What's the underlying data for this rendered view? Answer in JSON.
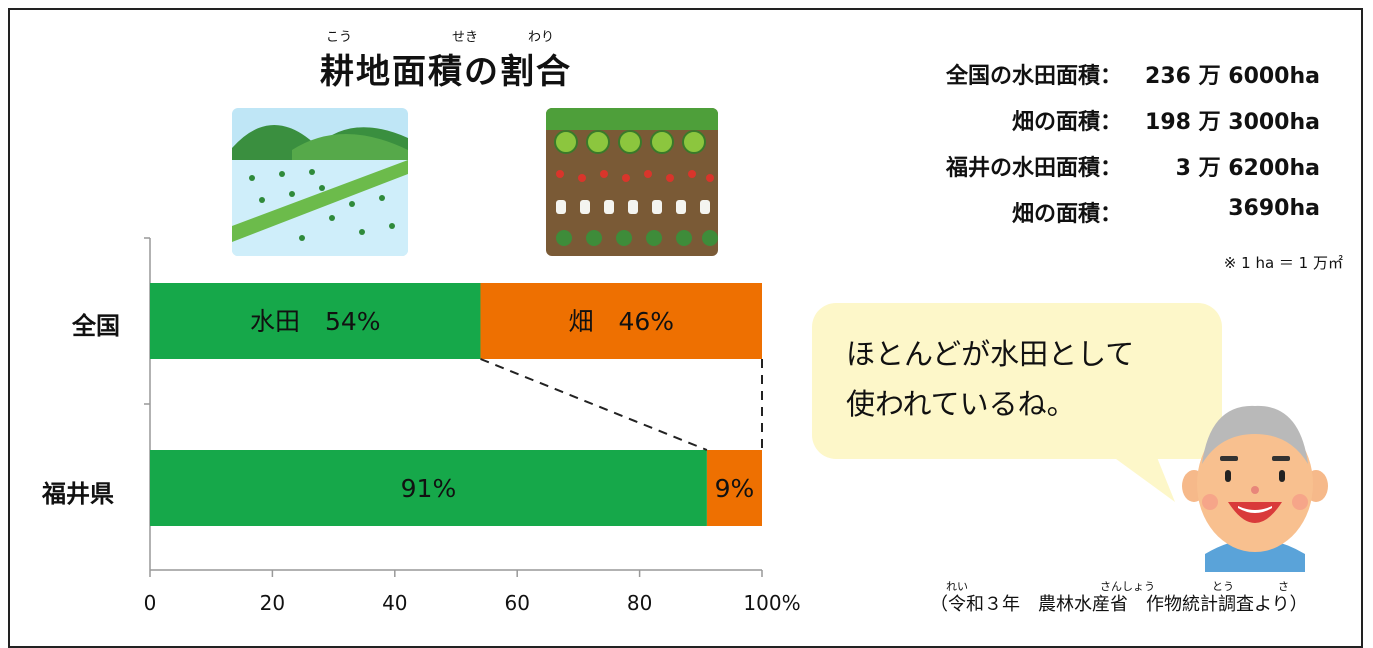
{
  "title": {
    "text": "耕地面積の割合",
    "ruby": [
      "こう",
      "せき",
      "わり"
    ]
  },
  "stats": [
    {
      "label": "全国の水田面積：",
      "value": "236 万 6000ha"
    },
    {
      "label": "畑の面積：",
      "value": "198 万 3000ha"
    },
    {
      "label": "福井の水田面積：",
      "value": "3 万 6200ha"
    },
    {
      "label": "畑の面積：",
      "value": "3690ha"
    }
  ],
  "note": "※ 1 ha ＝ 1 万㎡",
  "bubble": {
    "line1": "ほとんどが水田として",
    "line2": "使われているね。"
  },
  "source": {
    "text": "（令和３年　農林水産省　作物統計調査より）",
    "ruby": [
      "れい",
      "さんしょう",
      "とう",
      "さ"
    ]
  },
  "colors": {
    "paddy": "#16a84a",
    "field": "#ee7001",
    "bubble": "#fdf7c9"
  },
  "icons": [
    "rice-paddy-illustration",
    "vegetable-field-illustration",
    "grandpa-illustration"
  ],
  "chart_data": {
    "type": "bar",
    "orientation": "horizontal",
    "stacked": true,
    "categories": [
      "全国",
      "福井県"
    ],
    "series": [
      {
        "name": "水田",
        "values": [
          54,
          91
        ],
        "labels": [
          "水田　54%",
          "91%"
        ]
      },
      {
        "name": "畑",
        "values": [
          46,
          9
        ],
        "labels": [
          "畑　46%",
          "9%"
        ]
      }
    ],
    "xlim": [
      0,
      100
    ],
    "xticks": [
      "0",
      "20",
      "40",
      "60",
      "80",
      "100%"
    ],
    "grid": false,
    "legend": "none"
  }
}
